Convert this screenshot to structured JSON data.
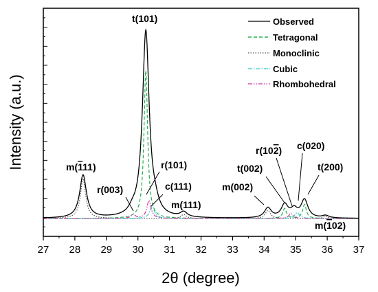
{
  "chart_data": {
    "type": "line",
    "title": "",
    "xlabel": "2θ (degree)",
    "ylabel": "Intensity (a.u.)",
    "xlim": [
      27,
      37
    ],
    "ylim": [
      0,
      1.05
    ],
    "x_ticks": [
      "27",
      "28",
      "29",
      "30",
      "31",
      "32",
      "33",
      "34",
      "35",
      "36",
      "37"
    ],
    "y_tick_labels_shown": false,
    "grid": false,
    "legend_position": "top-right",
    "series": [
      {
        "name": "Observed",
        "color": "#000000",
        "style": "solid",
        "peaks": [
          {
            "x": 28.26,
            "y": 0.215
          },
          {
            "x": 29.82,
            "y": 0.02
          },
          {
            "x": 30.25,
            "y": 0.935
          },
          {
            "x": 30.55,
            "y": 0.035
          },
          {
            "x": 31.45,
            "y": 0.025
          },
          {
            "x": 34.12,
            "y": 0.05
          },
          {
            "x": 34.65,
            "y": 0.065
          },
          {
            "x": 34.95,
            "y": 0.04
          },
          {
            "x": 35.28,
            "y": 0.09
          },
          {
            "x": 35.95,
            "y": 0.012
          }
        ]
      },
      {
        "name": "Tetragonal",
        "color": "#22b24c",
        "style": "dashed",
        "peaks": [
          {
            "x": 30.25,
            "y": 0.74
          },
          {
            "x": 34.65,
            "y": 0.05
          },
          {
            "x": 35.28,
            "y": 0.07
          }
        ]
      },
      {
        "name": "Monoclinic",
        "color": "#555555",
        "style": "dotted",
        "peaks": [
          {
            "x": 28.26,
            "y": 0.2
          },
          {
            "x": 31.45,
            "y": 0.02
          },
          {
            "x": 34.12,
            "y": 0.04
          },
          {
            "x": 35.95,
            "y": 0.01
          }
        ]
      },
      {
        "name": "Cubic",
        "color": "#33cccc",
        "style": "dash-dot",
        "peaks": [
          {
            "x": 30.45,
            "y": 0.06
          },
          {
            "x": 35.05,
            "y": 0.03
          }
        ]
      },
      {
        "name": "Rhombohedral",
        "color": "#cc3399",
        "style": "dash-dot-dot",
        "peaks": [
          {
            "x": 29.85,
            "y": 0.02
          },
          {
            "x": 30.35,
            "y": 0.09
          },
          {
            "x": 34.85,
            "y": 0.025
          }
        ]
      }
    ],
    "annotations": [
      {
        "name": "t101",
        "text": "t(101)"
      },
      {
        "name": "m-111",
        "text": "m(ī11)"
      },
      {
        "name": "r003",
        "text": "r(003)"
      },
      {
        "name": "r101",
        "text": "r(101)"
      },
      {
        "name": "c111",
        "text": "c(111)"
      },
      {
        "name": "m111",
        "text": "m(111)"
      },
      {
        "name": "m002",
        "text": "m(002)"
      },
      {
        "name": "t002",
        "text": "t(002)"
      },
      {
        "name": "r10-2",
        "text": "r(10̅\u00032)"
      },
      {
        "name": "c020",
        "text": "c(020)"
      },
      {
        "name": "t200",
        "text": "t(200)"
      },
      {
        "name": "m-102",
        "text": "m(ī02)"
      }
    ]
  }
}
